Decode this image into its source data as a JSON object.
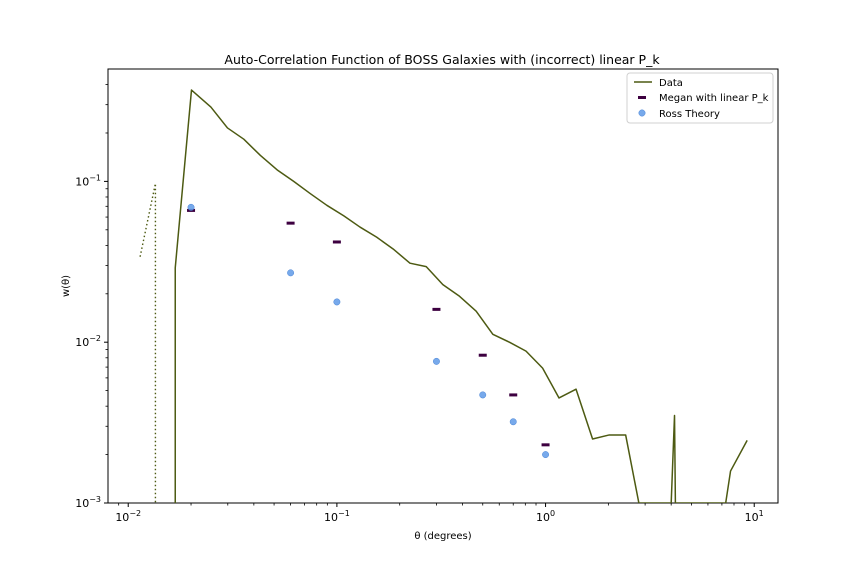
{
  "chart_data": {
    "type": "line",
    "title": "Auto-Correlation Function of BOSS Galaxies with (incorrect) linear P_k",
    "xlabel": "θ (degrees)",
    "ylabel": "w(θ)",
    "xscale": "log",
    "yscale": "log",
    "xlim": [
      0.008,
      13
    ],
    "ylim": [
      0.001,
      0.5
    ],
    "grid": false,
    "legend_position": "top-right",
    "x_ticks": [
      {
        "value": 0.01,
        "base": "10",
        "exp": "−2"
      },
      {
        "value": 0.1,
        "base": "10",
        "exp": "−1"
      },
      {
        "value": 1,
        "base": "10",
        "exp": "0"
      },
      {
        "value": 10,
        "base": "10",
        "exp": "1"
      }
    ],
    "y_ticks": [
      {
        "value": 0.001,
        "base": "10",
        "exp": "−3"
      },
      {
        "value": 0.01,
        "base": "10",
        "exp": "−2"
      },
      {
        "value": 0.1,
        "base": "10",
        "exp": "−1"
      }
    ],
    "series": [
      {
        "name": "Data",
        "style": "line",
        "color": "#4d5a12",
        "x": [
          0.0168,
          0.0168,
          0.0201,
          0.0249,
          0.0299,
          0.0358,
          0.043,
          0.0517,
          0.0621,
          0.0745,
          0.0895,
          0.108,
          0.129,
          0.155,
          0.186,
          0.224,
          0.268,
          0.322,
          0.387,
          0.465,
          0.559,
          0.671,
          0.806,
          0.968,
          1.16,
          1.4,
          1.68,
          2.02,
          2.42,
          2.8,
          2.97,
          3.0,
          4.0,
          4.15,
          4.19,
          7.3,
          7.7,
          9.25
        ],
        "y": [
          0.001,
          0.029,
          0.37,
          0.29,
          0.215,
          0.183,
          0.145,
          0.118,
          0.1,
          0.084,
          0.071,
          0.061,
          0.052,
          0.045,
          0.038,
          0.031,
          0.0295,
          0.0228,
          0.0193,
          0.0156,
          0.0112,
          0.01,
          0.0088,
          0.0069,
          0.0045,
          0.0051,
          0.0025,
          0.00265,
          0.00265,
          0.001,
          0.001,
          0.001,
          0.001,
          0.0035,
          0.001,
          0.001,
          0.00158,
          0.00245
        ]
      },
      {
        "name": "",
        "style": "dotted",
        "color": "#4d5a12",
        "x": [
          0.0114,
          0.0135,
          0.0135,
          0.0135
        ],
        "y": [
          0.034,
          0.097,
          0.097,
          0.001
        ]
      },
      {
        "name": "Megan with linear P_k",
        "style": "hline-marker",
        "color": "#3d0040",
        "x": [
          0.02,
          0.06,
          0.1,
          0.3,
          0.5,
          0.7,
          1.0
        ],
        "y": [
          0.066,
          0.055,
          0.042,
          0.016,
          0.0083,
          0.0047,
          0.0023
        ]
      },
      {
        "name": "Ross Theory",
        "style": "scatter",
        "color": "#5f9ae8",
        "x": [
          0.02,
          0.06,
          0.1,
          0.3,
          0.5,
          0.7,
          1.0
        ],
        "y": [
          0.069,
          0.027,
          0.0178,
          0.0076,
          0.0047,
          0.0032,
          0.002
        ]
      }
    ]
  }
}
